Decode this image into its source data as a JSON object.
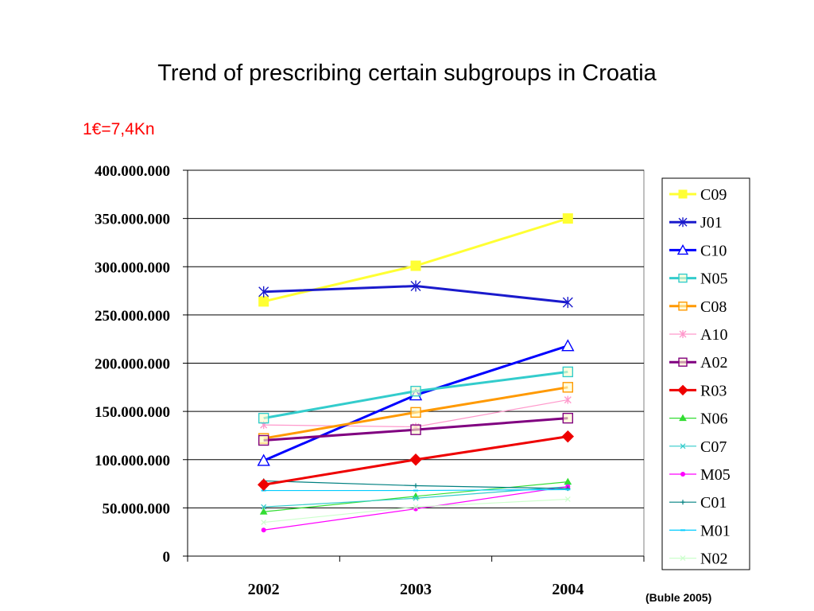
{
  "slide": {
    "title": "Trend of prescribing certain subgroups in Croatia",
    "rate_note": "1€=7,4Kn",
    "source": "(Buble 2005)"
  },
  "chart_data": {
    "type": "line",
    "categories": [
      "2002",
      "2003",
      "2004"
    ],
    "ylim": [
      0,
      400000000
    ],
    "yticks": [
      0,
      50000000,
      100000000,
      150000000,
      200000000,
      250000000,
      300000000,
      350000000,
      400000000
    ],
    "ytick_labels": [
      "0",
      "50.000.000",
      "100.000.000",
      "150.000.000",
      "200.000.000",
      "250.000.000",
      "300.000.000",
      "350.000.000",
      "400.000.000"
    ],
    "grid": "horizontal",
    "legend": "right",
    "series": [
      {
        "name": "C09",
        "values": [
          264000000,
          301000000,
          350000000
        ],
        "color": "#ffff33",
        "marker": "square-filled",
        "width": "thick"
      },
      {
        "name": "J01",
        "values": [
          274000000,
          280000000,
          263000000
        ],
        "color": "#1a1acc",
        "marker": "asterisk",
        "width": "thick"
      },
      {
        "name": "C10",
        "values": [
          99000000,
          167000000,
          218000000
        ],
        "color": "#0000ff",
        "marker": "triangle-open",
        "width": "thick"
      },
      {
        "name": "N05",
        "values": [
          143000000,
          171000000,
          191000000
        ],
        "color": "#33cccc",
        "marker": "square-open",
        "width": "thick"
      },
      {
        "name": "C08",
        "values": [
          122000000,
          149000000,
          175000000
        ],
        "color": "#ff9900",
        "marker": "square-open",
        "width": "thick"
      },
      {
        "name": "A10",
        "values": [
          136000000,
          134000000,
          162000000
        ],
        "color": "#ff99cc",
        "marker": "asterisk",
        "width": "thin"
      },
      {
        "name": "A02",
        "values": [
          120000000,
          131000000,
          143000000
        ],
        "color": "#800080",
        "marker": "square-open",
        "width": "thick"
      },
      {
        "name": "R03",
        "values": [
          74000000,
          100000000,
          124000000
        ],
        "color": "#ee0000",
        "marker": "diamond-filled",
        "width": "thick"
      },
      {
        "name": "N06",
        "values": [
          46000000,
          62000000,
          77000000
        ],
        "color": "#33dd33",
        "marker": "triangle-filled",
        "width": "thin"
      },
      {
        "name": "C07",
        "values": [
          51000000,
          60000000,
          72000000
        ],
        "color": "#33cccc",
        "marker": "x",
        "width": "thin"
      },
      {
        "name": "M05",
        "values": [
          27000000,
          49000000,
          72000000
        ],
        "color": "#ff00ff",
        "marker": "circle-filled",
        "width": "thin"
      },
      {
        "name": "C01",
        "values": [
          78000000,
          73000000,
          70000000
        ],
        "color": "#008080",
        "marker": "plus",
        "width": "thin"
      },
      {
        "name": "M01",
        "values": [
          68000000,
          68000000,
          69000000
        ],
        "color": "#00ccff",
        "marker": "dash",
        "width": "thin"
      },
      {
        "name": "N02",
        "values": [
          35000000,
          51000000,
          59000000
        ],
        "color": "#ccffcc",
        "marker": "x",
        "width": "thin"
      }
    ]
  }
}
